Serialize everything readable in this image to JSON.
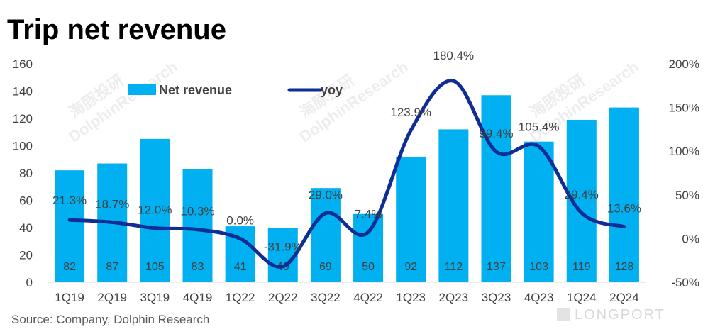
{
  "chart_data": {
    "type": "bar",
    "title": "Trip net revenue",
    "categories": [
      "1Q19",
      "2Q19",
      "3Q19",
      "4Q19",
      "1Q22",
      "2Q22",
      "3Q22",
      "4Q22",
      "1Q23",
      "2Q23",
      "3Q23",
      "4Q23",
      "1Q24",
      "2Q24"
    ],
    "series": [
      {
        "name": "Net revenue",
        "type": "bar",
        "axis": "left",
        "color": "#00b0f0",
        "values": [
          82,
          87,
          105,
          83,
          41,
          40,
          69,
          50,
          92,
          112,
          137,
          103,
          119,
          128
        ],
        "labels": [
          "82",
          "87",
          "105",
          "83",
          "41",
          "40",
          "69",
          "50",
          "92",
          "112",
          "137",
          "103",
          "119",
          "128"
        ]
      },
      {
        "name": "yoy",
        "type": "line",
        "axis": "right",
        "color": "#0f2d94",
        "values": [
          21.3,
          18.7,
          12.0,
          10.3,
          0.0,
          -31.9,
          29.0,
          7.4,
          123.9,
          180.4,
          99.4,
          105.4,
          29.4,
          13.6
        ],
        "labels": [
          "21.3%",
          "18.7%",
          "12.0%",
          "10.3%",
          "0.0%",
          "-31.9%",
          "29.0%",
          "7.4%",
          "123.9%",
          "180.4%",
          "99.4%",
          "105.4%",
          "29.4%",
          "13.6%"
        ]
      }
    ],
    "y_left": {
      "range": [
        0,
        160
      ],
      "ticks": [
        "0",
        "20",
        "40",
        "60",
        "80",
        "100",
        "120",
        "140",
        "160"
      ]
    },
    "y_right": {
      "range": [
        -50,
        200
      ],
      "ticks": [
        "-50%",
        "0%",
        "50%",
        "100%",
        "150%",
        "200%"
      ]
    },
    "legend_position": "top-left",
    "grid": false
  },
  "source": "Source: Company, Dolphin Research",
  "watermarks": [
    "海豚投研",
    "DolphinResearch"
  ],
  "logo_text": "LONGPORT"
}
